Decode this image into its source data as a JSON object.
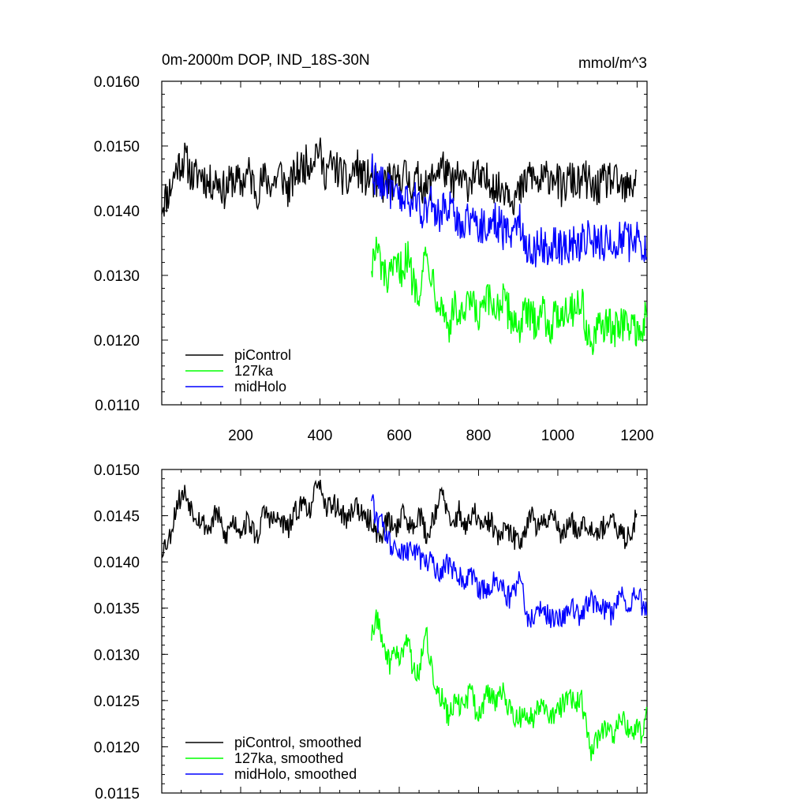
{
  "chart_data": [
    {
      "type": "line",
      "title": "0m-2000m DOP, IND_18S-30N",
      "units": "mmol/m^3",
      "xlabel": "",
      "ylabel": "",
      "xlim": [
        1,
        1225
      ],
      "ylim": [
        0.011,
        0.016
      ],
      "yticks": [
        "0.0160",
        "0.0150",
        "0.0140",
        "0.0130",
        "0.0120",
        "0.0110"
      ],
      "xticks": [
        "200",
        "400",
        "600",
        "800",
        "1000",
        "1200"
      ],
      "legend_position": "bottom-left",
      "series": [
        {
          "name": "piControl",
          "color": "#000000",
          "x": [
            1,
            20,
            40,
            60,
            80,
            100,
            120,
            140,
            160,
            180,
            200,
            220,
            240,
            260,
            280,
            300,
            320,
            340,
            360,
            380,
            395,
            410,
            430,
            450,
            470,
            490,
            510,
            530,
            550,
            570,
            590,
            610,
            630,
            650,
            670,
            690,
            710,
            730,
            750,
            770,
            790,
            810,
            830,
            850,
            870,
            890,
            910,
            930,
            950,
            970,
            990,
            1010,
            1030,
            1050,
            1070,
            1090,
            1110,
            1130,
            1150,
            1170,
            1190,
            1200
          ],
          "values": [
            0.0141,
            0.0143,
            0.0147,
            0.0148,
            0.0145,
            0.0146,
            0.0144,
            0.0145,
            0.0143,
            0.0145,
            0.0144,
            0.0146,
            0.0143,
            0.0145,
            0.0144,
            0.0146,
            0.0143,
            0.0146,
            0.0147,
            0.0148,
            0.015,
            0.0146,
            0.0147,
            0.0146,
            0.0144,
            0.0147,
            0.0145,
            0.0145,
            0.0143,
            0.0145,
            0.0144,
            0.0146,
            0.0144,
            0.0145,
            0.0143,
            0.0146,
            0.0147,
            0.0144,
            0.0145,
            0.0144,
            0.0146,
            0.0144,
            0.0145,
            0.0143,
            0.0144,
            0.0142,
            0.0143,
            0.0146,
            0.0144,
            0.0145,
            0.0146,
            0.0143,
            0.0145,
            0.0144,
            0.0145,
            0.0143,
            0.0144,
            0.0145,
            0.0144,
            0.0143,
            0.0144,
            0.0147
          ]
        },
        {
          "name": "127ka",
          "color": "#00ff00",
          "x": [
            530,
            545,
            560,
            575,
            590,
            605,
            620,
            635,
            650,
            665,
            680,
            695,
            710,
            725,
            740,
            760,
            780,
            800,
            820,
            840,
            860,
            880,
            900,
            920,
            940,
            960,
            980,
            1000,
            1020,
            1040,
            1060,
            1075,
            1085,
            1100,
            1120,
            1140,
            1160,
            1180,
            1200,
            1215,
            1225
          ],
          "values": [
            0.0132,
            0.0134,
            0.013,
            0.0129,
            0.0131,
            0.0131,
            0.0133,
            0.0129,
            0.0128,
            0.0133,
            0.0131,
            0.0127,
            0.0125,
            0.0122,
            0.0125,
            0.0123,
            0.0126,
            0.0123,
            0.0126,
            0.0125,
            0.0126,
            0.0124,
            0.0122,
            0.0124,
            0.0123,
            0.0125,
            0.0122,
            0.0124,
            0.0125,
            0.0125,
            0.0126,
            0.0121,
            0.0119,
            0.0121,
            0.0123,
            0.0121,
            0.0123,
            0.0122,
            0.0122,
            0.0121,
            0.0125
          ]
        },
        {
          "name": "midHolo",
          "color": "#0000ff",
          "x": [
            530,
            545,
            560,
            575,
            590,
            605,
            620,
            640,
            660,
            680,
            700,
            720,
            740,
            760,
            780,
            800,
            820,
            840,
            860,
            880,
            900,
            910,
            920,
            940,
            960,
            980,
            1000,
            1020,
            1040,
            1060,
            1080,
            1100,
            1120,
            1140,
            1160,
            1180,
            1200,
            1215,
            1225
          ],
          "values": [
            0.0147,
            0.0144,
            0.0145,
            0.0143,
            0.0142,
            0.0142,
            0.0141,
            0.0142,
            0.014,
            0.0141,
            0.0139,
            0.0141,
            0.0139,
            0.0138,
            0.0139,
            0.0138,
            0.0137,
            0.0139,
            0.0137,
            0.0136,
            0.0139,
            0.0138,
            0.0134,
            0.0134,
            0.0135,
            0.0134,
            0.0135,
            0.0134,
            0.0135,
            0.0135,
            0.0136,
            0.0135,
            0.0135,
            0.0135,
            0.0136,
            0.0135,
            0.0136,
            0.0135,
            0.0135
          ]
        }
      ]
    },
    {
      "type": "line",
      "title": "",
      "xlabel": "",
      "ylabel": "",
      "xlim": [
        1,
        1225
      ],
      "ylim": [
        0.0115,
        0.015
      ],
      "yticks": [
        "0.0150",
        "0.0145",
        "0.0140",
        "0.0135",
        "0.0130",
        "0.0125",
        "0.0120",
        "0.0115"
      ],
      "legend_position": "bottom-left",
      "series": [
        {
          "name": "piControl, smoothed",
          "color": "#000000",
          "x": [
            1,
            20,
            40,
            60,
            80,
            100,
            120,
            140,
            160,
            180,
            200,
            220,
            240,
            260,
            280,
            300,
            320,
            340,
            360,
            380,
            395,
            410,
            430,
            450,
            470,
            490,
            510,
            530,
            550,
            570,
            590,
            610,
            630,
            650,
            670,
            690,
            710,
            730,
            750,
            770,
            790,
            810,
            830,
            850,
            870,
            890,
            910,
            930,
            950,
            970,
            990,
            1010,
            1030,
            1050,
            1070,
            1090,
            1110,
            1130,
            1150,
            1170,
            1190,
            1200
          ],
          "values": [
            0.01415,
            0.01425,
            0.01465,
            0.01475,
            0.01455,
            0.01445,
            0.01435,
            0.01455,
            0.01425,
            0.01445,
            0.01435,
            0.01445,
            0.01425,
            0.01455,
            0.01445,
            0.01445,
            0.01435,
            0.01455,
            0.01465,
            0.01455,
            0.01495,
            0.01455,
            0.01465,
            0.01455,
            0.01445,
            0.01465,
            0.01445,
            0.01445,
            0.01425,
            0.01445,
            0.01435,
            0.01455,
            0.01435,
            0.01455,
            0.01425,
            0.01455,
            0.01475,
            0.01435,
            0.01455,
            0.01435,
            0.01455,
            0.01435,
            0.01445,
            0.01425,
            0.01435,
            0.01425,
            0.01425,
            0.01455,
            0.01435,
            0.01445,
            0.01455,
            0.01425,
            0.01445,
            0.01435,
            0.01445,
            0.01435,
            0.01435,
            0.01445,
            0.01435,
            0.01425,
            0.01435,
            0.01465
          ]
        },
        {
          "name": "127ka, smoothed",
          "color": "#00ff00",
          "x": [
            530,
            545,
            560,
            575,
            590,
            605,
            620,
            635,
            650,
            665,
            680,
            695,
            710,
            725,
            740,
            760,
            780,
            800,
            820,
            840,
            860,
            880,
            900,
            920,
            940,
            960,
            980,
            1000,
            1020,
            1040,
            1060,
            1075,
            1085,
            1100,
            1120,
            1140,
            1160,
            1180,
            1200,
            1215,
            1225
          ],
          "values": [
            0.0132,
            0.0134,
            0.0131,
            0.0129,
            0.013,
            0.013,
            0.0132,
            0.0128,
            0.0128,
            0.0133,
            0.0129,
            0.0126,
            0.0125,
            0.0123,
            0.0125,
            0.0124,
            0.0126,
            0.0123,
            0.0126,
            0.0125,
            0.0126,
            0.0124,
            0.0123,
            0.0124,
            0.0123,
            0.0125,
            0.0123,
            0.0124,
            0.0125,
            0.0125,
            0.0125,
            0.0122,
            0.0119,
            0.0121,
            0.0122,
            0.0121,
            0.0123,
            0.0122,
            0.0122,
            0.0121,
            0.0125
          ]
        },
        {
          "name": "midHolo, smoothed",
          "color": "#0000ff",
          "x": [
            530,
            545,
            560,
            575,
            590,
            605,
            620,
            640,
            660,
            680,
            700,
            720,
            740,
            760,
            780,
            800,
            820,
            840,
            860,
            880,
            900,
            910,
            920,
            940,
            960,
            980,
            1000,
            1020,
            1040,
            1060,
            1080,
            1100,
            1120,
            1140,
            1160,
            1180,
            1200,
            1215,
            1225
          ],
          "values": [
            0.0147,
            0.0144,
            0.0144,
            0.0142,
            0.0142,
            0.0141,
            0.0141,
            0.0141,
            0.014,
            0.014,
            0.0139,
            0.014,
            0.0139,
            0.0138,
            0.0139,
            0.0137,
            0.0137,
            0.0138,
            0.0137,
            0.0136,
            0.0138,
            0.0137,
            0.0134,
            0.0134,
            0.0135,
            0.0134,
            0.0134,
            0.0134,
            0.0135,
            0.0134,
            0.0136,
            0.0135,
            0.0135,
            0.0134,
            0.0137,
            0.0135,
            0.0137,
            0.0135,
            0.0135
          ]
        }
      ]
    }
  ]
}
